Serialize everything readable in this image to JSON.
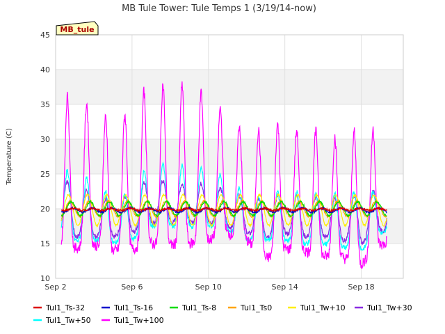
{
  "chart_data": {
    "type": "line",
    "title": "MB Tule Tower: Tule Temps 1 (3/19/14-now)",
    "xlabel": "",
    "ylabel": "Temperature (C)",
    "site_badge": "MB_tule",
    "xlim": [
      2.0,
      20.2
    ],
    "ylim": [
      10,
      45
    ],
    "x_ticks": [
      {
        "x": 2,
        "label": "Sep 2"
      },
      {
        "x": 6,
        "label": "Sep 6"
      },
      {
        "x": 10,
        "label": "Sep 10"
      },
      {
        "x": 14,
        "label": "Sep 14"
      },
      {
        "x": 18,
        "label": "Sep 18"
      }
    ],
    "y_ticks": [
      10,
      15,
      20,
      25,
      30,
      35,
      40,
      45
    ],
    "grid": true,
    "legend_placement": "bottom",
    "day_maxima": {
      "days": [
        2,
        3,
        4,
        5,
        6,
        7,
        8,
        9,
        10,
        11,
        12,
        13,
        14,
        15,
        16,
        17,
        18,
        19
      ],
      "Tul1_Tw+100": [
        39.5,
        34.0,
        35.8,
        31.5,
        34.8,
        38.0,
        37.8,
        37.8,
        36.0,
        33.5,
        31.0,
        31.5,
        32.5,
        30.5,
        31.5,
        29.5,
        32.0,
        31.0
      ],
      "Tul1_Tw+50": [
        27.2,
        24.5,
        24.3,
        21.5,
        22.5,
        27.0,
        26.2,
        26.2,
        25.9,
        24.2,
        22.5,
        21.5,
        23.0,
        22.2,
        22.0,
        22.3,
        22.6,
        22.5
      ],
      "Tul1_Tw+30": [
        25.6,
        23.0,
        22.5,
        20.8,
        22.0,
        24.8,
        23.5,
        23.6,
        23.6,
        22.5,
        21.5,
        21.2,
        22.3,
        21.5,
        21.8,
        21.5,
        22.0,
        22.8
      ]
    },
    "day_minima": {
      "days": [
        2,
        3,
        4,
        5,
        6,
        7,
        8,
        9,
        10,
        11,
        12,
        13,
        14,
        15,
        16,
        17,
        18,
        19
      ],
      "Tul1_Tw+100": [
        14.5,
        14.3,
        14.8,
        14.0,
        14.2,
        15.0,
        14.8,
        15.0,
        15.5,
        16.5,
        15.5,
        12.8,
        14.2,
        14.0,
        13.2,
        13.0,
        12.0,
        14.8
      ],
      "Tul1_Tw+50": [
        17.0,
        15.5,
        15.5,
        15.0,
        15.5,
        17.5,
        17.5,
        17.5,
        17.5,
        17.0,
        15.5,
        15.5,
        15.5,
        15.0,
        15.0,
        14.5,
        14.0,
        16.5
      ],
      "Tul1_Tw+30": [
        17.5,
        16.0,
        16.0,
        16.0,
        16.5,
        18.0,
        18.0,
        18.0,
        18.0,
        17.5,
        16.5,
        16.0,
        16.5,
        16.0,
        16.0,
        15.5,
        15.0,
        16.8
      ]
    },
    "x_start": 2.3,
    "x_end": 19.35,
    "peak_offset": 0.62,
    "series": [
      {
        "name": "Tul1_Ts-32",
        "color": "#dd0000",
        "mean": 19.9,
        "amp": 0.15
      },
      {
        "name": "Tul1_Ts-16",
        "color": "#0000cc",
        "mean": 19.8,
        "amp": 0.3
      },
      {
        "name": "Tul1_Ts-8",
        "color": "#00dd00",
        "mean": 20.0,
        "amp": 1.0
      },
      {
        "name": "Tul1_Ts0",
        "color": "#ffa500",
        "mean": 20.0,
        "amp": 1.1
      },
      {
        "name": "Tul1_Tw+10",
        "color": "#ffee00",
        "mean": 19.8,
        "amp": 2.2
      },
      {
        "name": "Tul1_Tw+30",
        "color": "#8a2be2"
      },
      {
        "name": "Tul1_Tw+50",
        "color": "#00ffff"
      },
      {
        "name": "Tul1_Tw+100",
        "color": "#ff00ff"
      }
    ]
  }
}
